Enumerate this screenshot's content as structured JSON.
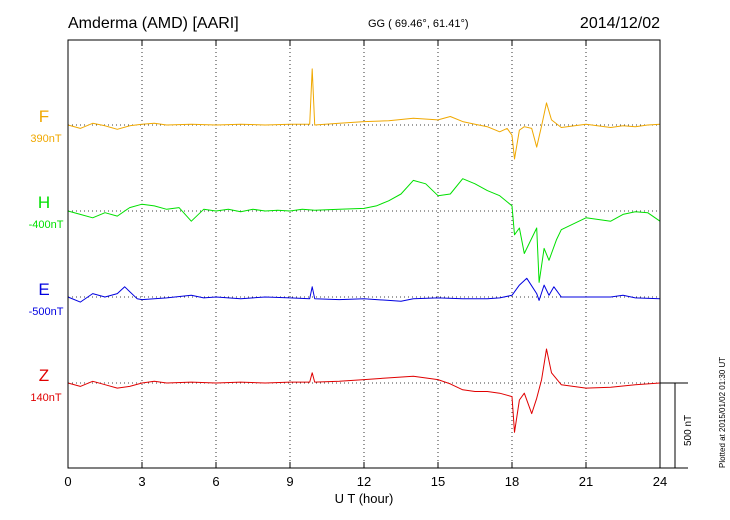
{
  "header": {
    "station": "Amderma (AMD)  [AARI]",
    "coords": "GG ( 69.46°,  61.41°)",
    "date": "2014/12/02"
  },
  "footer_note": "Plotted at 2015/01/02 01:30 UT",
  "scale_label": "500 nT",
  "chart_data": {
    "type": "line",
    "xlabel": "U T (hour)",
    "xlim": [
      0,
      24
    ],
    "xticks": [
      "0",
      "3",
      "6",
      "9",
      "12",
      "15",
      "18",
      "21",
      "24"
    ],
    "grid": true,
    "scale_nT": 500,
    "series": [
      {
        "name": "F",
        "baseline_label": "390nT",
        "color": "#f0a800",
        "points": [
          [
            0,
            0
          ],
          [
            0.5,
            -20
          ],
          [
            1,
            10
          ],
          [
            1.5,
            -5
          ],
          [
            2,
            -25
          ],
          [
            2.5,
            -5
          ],
          [
            3,
            5
          ],
          [
            3.5,
            10
          ],
          [
            4,
            0
          ],
          [
            5,
            5
          ],
          [
            6,
            0
          ],
          [
            7,
            5
          ],
          [
            8,
            0
          ],
          [
            9,
            5
          ],
          [
            9.8,
            5
          ],
          [
            9.9,
            330
          ],
          [
            10,
            0
          ],
          [
            11,
            10
          ],
          [
            12,
            20
          ],
          [
            13,
            25
          ],
          [
            14,
            40
          ],
          [
            15,
            30
          ],
          [
            15.5,
            50
          ],
          [
            16,
            20
          ],
          [
            16.5,
            5
          ],
          [
            17,
            -10
          ],
          [
            17.5,
            -40
          ],
          [
            17.8,
            -20
          ],
          [
            18,
            -60
          ],
          [
            18.1,
            -200
          ],
          [
            18.3,
            -30
          ],
          [
            18.5,
            -10
          ],
          [
            18.8,
            -20
          ],
          [
            19,
            -130
          ],
          [
            19.2,
            -5
          ],
          [
            19.4,
            130
          ],
          [
            19.6,
            30
          ],
          [
            20,
            -15
          ],
          [
            21,
            5
          ],
          [
            22,
            -15
          ],
          [
            22.5,
            -5
          ],
          [
            23,
            -10
          ],
          [
            23.5,
            0
          ],
          [
            24,
            5
          ]
        ]
      },
      {
        "name": "H",
        "baseline_label": "-400nT",
        "color": "#00e000",
        "points": [
          [
            0,
            0
          ],
          [
            0.5,
            -20
          ],
          [
            1,
            -40
          ],
          [
            1.5,
            -10
          ],
          [
            2,
            -30
          ],
          [
            2.5,
            20
          ],
          [
            3,
            40
          ],
          [
            3.5,
            30
          ],
          [
            4,
            10
          ],
          [
            4.5,
            20
          ],
          [
            5,
            -60
          ],
          [
            5.5,
            10
          ],
          [
            6,
            0
          ],
          [
            6.5,
            10
          ],
          [
            7,
            -5
          ],
          [
            7.5,
            10
          ],
          [
            8,
            0
          ],
          [
            8.5,
            5
          ],
          [
            9,
            0
          ],
          [
            9.5,
            10
          ],
          [
            10,
            5
          ],
          [
            11,
            10
          ],
          [
            12,
            15
          ],
          [
            12.5,
            30
          ],
          [
            13,
            60
          ],
          [
            13.5,
            100
          ],
          [
            14,
            180
          ],
          [
            14.5,
            160
          ],
          [
            15,
            90
          ],
          [
            15.5,
            100
          ],
          [
            16,
            190
          ],
          [
            16.5,
            160
          ],
          [
            17,
            120
          ],
          [
            17.5,
            90
          ],
          [
            18,
            30
          ],
          [
            18.1,
            -140
          ],
          [
            18.3,
            -100
          ],
          [
            18.5,
            -250
          ],
          [
            19,
            -100
          ],
          [
            19.1,
            -420
          ],
          [
            19.3,
            -220
          ],
          [
            19.5,
            -290
          ],
          [
            19.8,
            -170
          ],
          [
            20,
            -110
          ],
          [
            21,
            -40
          ],
          [
            22,
            -60
          ],
          [
            22.5,
            -20
          ],
          [
            23,
            -5
          ],
          [
            23.5,
            -10
          ],
          [
            24,
            -60
          ]
        ]
      },
      {
        "name": "E",
        "baseline_label": "-500nT",
        "color": "#0000e0",
        "points": [
          [
            0,
            0
          ],
          [
            0.5,
            -30
          ],
          [
            1,
            20
          ],
          [
            1.5,
            0
          ],
          [
            2,
            20
          ],
          [
            2.3,
            60
          ],
          [
            2.8,
            -10
          ],
          [
            3,
            -15
          ],
          [
            4,
            -5
          ],
          [
            5,
            10
          ],
          [
            5.5,
            -5
          ],
          [
            6,
            0
          ],
          [
            7,
            -10
          ],
          [
            8,
            0
          ],
          [
            9,
            -5
          ],
          [
            9.8,
            -10
          ],
          [
            9.9,
            60
          ],
          [
            10,
            -10
          ],
          [
            11,
            -15
          ],
          [
            12,
            -10
          ],
          [
            13,
            -20
          ],
          [
            13.5,
            -25
          ],
          [
            14,
            -10
          ],
          [
            15,
            -5
          ],
          [
            16,
            -10
          ],
          [
            17,
            -10
          ],
          [
            17.5,
            -5
          ],
          [
            18,
            10
          ],
          [
            18.3,
            70
          ],
          [
            18.6,
            110
          ],
          [
            19,
            20
          ],
          [
            19.1,
            -20
          ],
          [
            19.3,
            70
          ],
          [
            19.5,
            10
          ],
          [
            19.7,
            60
          ],
          [
            20,
            0
          ],
          [
            21,
            0
          ],
          [
            22,
            0
          ],
          [
            22.5,
            10
          ],
          [
            23,
            -5
          ],
          [
            24,
            -10
          ]
        ]
      },
      {
        "name": "Z",
        "baseline_label": "140nT",
        "color": "#e00000",
        "points": [
          [
            0,
            0
          ],
          [
            0.5,
            -20
          ],
          [
            1,
            10
          ],
          [
            1.5,
            -10
          ],
          [
            2,
            -30
          ],
          [
            2.5,
            -20
          ],
          [
            3,
            0
          ],
          [
            3.5,
            10
          ],
          [
            4,
            0
          ],
          [
            5,
            5
          ],
          [
            6,
            0
          ],
          [
            7,
            5
          ],
          [
            8,
            0
          ],
          [
            9,
            5
          ],
          [
            9.8,
            5
          ],
          [
            9.9,
            60
          ],
          [
            10,
            5
          ],
          [
            11,
            10
          ],
          [
            12,
            20
          ],
          [
            13,
            30
          ],
          [
            14,
            40
          ],
          [
            15,
            20
          ],
          [
            15.5,
            -5
          ],
          [
            16,
            -40
          ],
          [
            16.5,
            -50
          ],
          [
            17,
            -50
          ],
          [
            17.5,
            -60
          ],
          [
            18,
            -80
          ],
          [
            18.1,
            -290
          ],
          [
            18.3,
            -100
          ],
          [
            18.5,
            -60
          ],
          [
            18.8,
            -180
          ],
          [
            19,
            -90
          ],
          [
            19.2,
            20
          ],
          [
            19.4,
            200
          ],
          [
            19.6,
            60
          ],
          [
            20,
            -10
          ],
          [
            21,
            -30
          ],
          [
            22,
            -25
          ],
          [
            23,
            -10
          ],
          [
            23.5,
            -5
          ],
          [
            24,
            0
          ]
        ]
      }
    ]
  }
}
